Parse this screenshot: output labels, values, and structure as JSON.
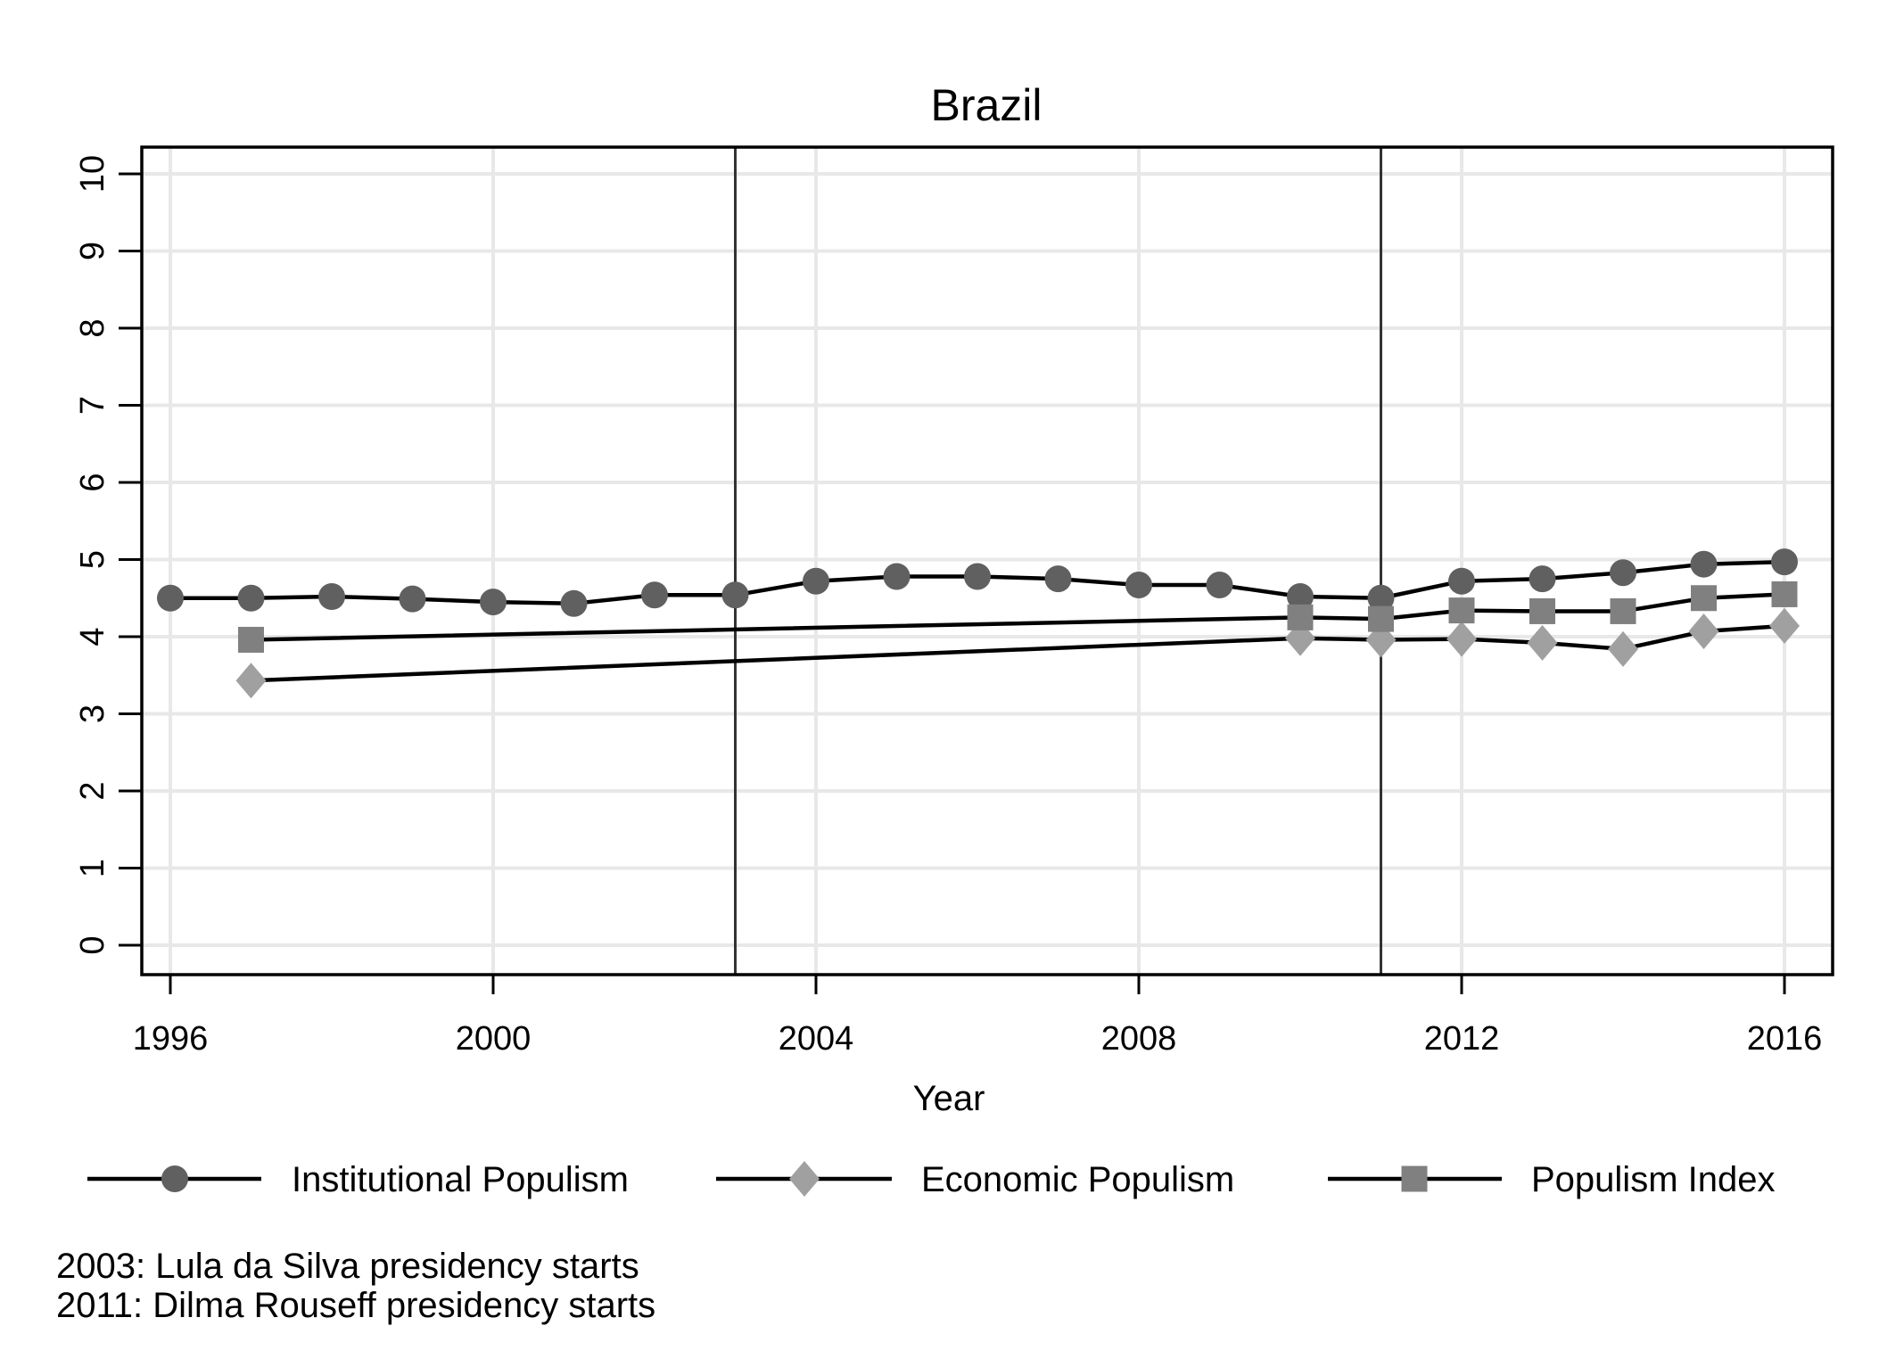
{
  "chart_data": {
    "type": "line",
    "title": "Brazil",
    "xlabel": "Year",
    "ylabel": "",
    "xlim": [
      1996,
      2016
    ],
    "ylim": [
      0,
      10
    ],
    "grid": true,
    "x_ticks": [
      1996,
      2000,
      2004,
      2008,
      2012,
      2016
    ],
    "x_tick_labels": [
      "1996",
      "2000",
      "2004",
      "2008",
      "2012",
      "2016"
    ],
    "y_ticks": [
      0,
      1,
      2,
      3,
      4,
      5,
      6,
      7,
      8,
      9,
      10
    ],
    "y_tick_labels": [
      "0",
      "1",
      "2",
      "3",
      "4",
      "5",
      "6",
      "7",
      "8",
      "9",
      "10"
    ],
    "reference_lines": [
      {
        "x": 2003,
        "note": "2003: Lula da Silva presidency starts"
      },
      {
        "x": 2011,
        "note": "2011: Dilma Rouseff presidency starts"
      }
    ],
    "legend_position": "bottom",
    "series": [
      {
        "name": "Institutional Populism",
        "marker": "circle",
        "color": "#606060",
        "line_color": "#000000",
        "x": [
          1996,
          1997,
          1998,
          1999,
          2000,
          2001,
          2002,
          2003,
          2004,
          2005,
          2006,
          2007,
          2008,
          2009,
          2010,
          2011,
          2012,
          2013,
          2014,
          2015,
          2016
        ],
        "values": [
          4.5,
          4.5,
          4.52,
          4.49,
          4.45,
          4.43,
          4.54,
          4.54,
          4.72,
          4.78,
          4.78,
          4.75,
          4.67,
          4.67,
          4.52,
          4.5,
          4.72,
          4.75,
          4.83,
          4.94,
          4.97
        ]
      },
      {
        "name": "Economic Populism",
        "marker": "diamond",
        "color": "#A0A0A0",
        "line_color": "#000000",
        "x": [
          1997,
          2010,
          2011,
          2012,
          2013,
          2014,
          2015,
          2016
        ],
        "values": [
          3.43,
          3.98,
          3.96,
          3.97,
          3.92,
          3.84,
          4.07,
          4.14
        ]
      },
      {
        "name": "Populism Index",
        "marker": "square",
        "color": "#808080",
        "line_color": "#000000",
        "x": [
          1997,
          2010,
          2011,
          2012,
          2013,
          2014,
          2015,
          2016
        ],
        "values": [
          3.96,
          4.25,
          4.23,
          4.34,
          4.33,
          4.33,
          4.5,
          4.55
        ]
      }
    ],
    "notes": [
      "2003: Lula da Silva presidency starts",
      "2011: Dilma Rouseff presidency starts"
    ]
  },
  "colors": {
    "background": "#ffffff",
    "gridline": "#e8e8e8",
    "frame": "#000000",
    "reference_line": "#333333"
  }
}
